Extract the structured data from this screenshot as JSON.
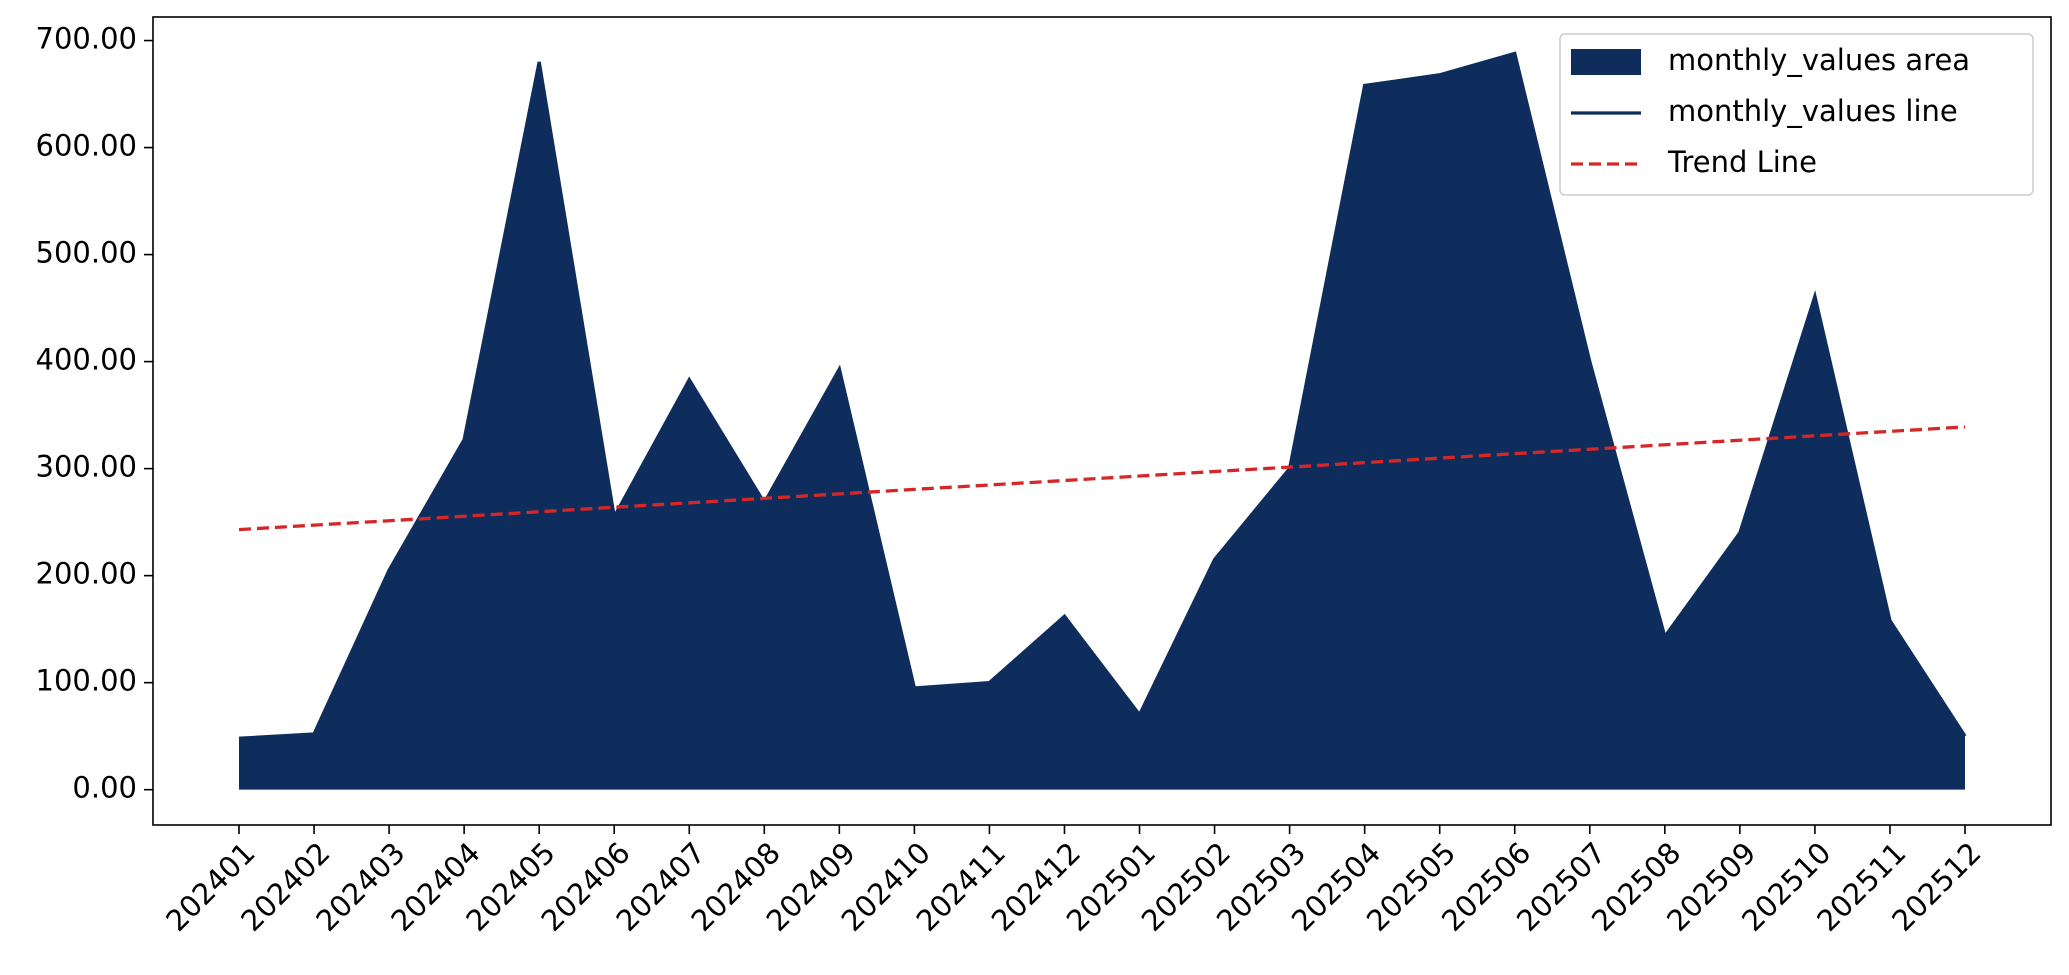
{
  "chart_data": {
    "type": "area",
    "categories": [
      "202401",
      "202402",
      "202403",
      "202404",
      "202405",
      "202406",
      "202407",
      "202408",
      "202409",
      "202410",
      "202411",
      "202412",
      "202501",
      "202502",
      "202503",
      "202504",
      "202505",
      "202506",
      "202507",
      "202508",
      "202509",
      "202510",
      "202511",
      "202512"
    ],
    "series": [
      {
        "name": "monthly_values area",
        "kind": "area",
        "color": "#0e2d5c",
        "values": [
          48,
          52,
          205,
          327,
          680,
          255,
          383,
          268,
          393,
          95,
          100,
          162,
          70,
          215,
          300,
          658,
          668,
          688,
          400,
          143,
          240,
          461,
          158,
          50
        ]
      },
      {
        "name": "monthly_values line",
        "kind": "line",
        "color": "#0e2d5c",
        "values": [
          48,
          52,
          205,
          327,
          680,
          255,
          383,
          268,
          393,
          95,
          100,
          162,
          70,
          215,
          300,
          658,
          668,
          688,
          400,
          143,
          240,
          461,
          158,
          50
        ]
      },
      {
        "name": "Trend Line",
        "kind": "line",
        "dashed": true,
        "color": "#d62728",
        "values": [
          243.0,
          247.2,
          251.3,
          255.5,
          259.7,
          263.9,
          268.0,
          272.2,
          276.4,
          280.6,
          284.7,
          288.9,
          293.1,
          297.3,
          301.4,
          305.6,
          309.8,
          314.0,
          318.1,
          322.3,
          326.5,
          330.7,
          334.8,
          339.0
        ]
      }
    ],
    "ylim": [
      -33,
      722
    ],
    "yticks": [
      {
        "value": 0,
        "label": "0.00"
      },
      {
        "value": 100,
        "label": "100.00"
      },
      {
        "value": 200,
        "label": "200.00"
      },
      {
        "value": 300,
        "label": "300.00"
      },
      {
        "value": 400,
        "label": "400.00"
      },
      {
        "value": 500,
        "label": "500.00"
      },
      {
        "value": 600,
        "label": "600.00"
      },
      {
        "value": 700,
        "label": "700.00"
      }
    ],
    "grid": false,
    "legend": "upper right"
  }
}
